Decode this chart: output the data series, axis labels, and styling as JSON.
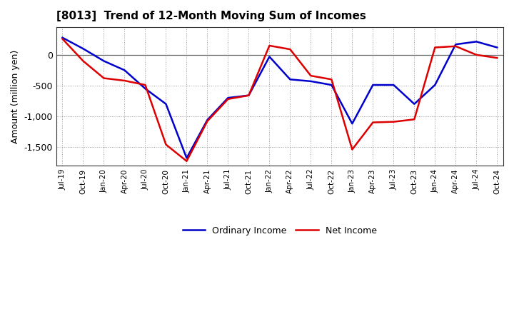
{
  "title": "[8013]  Trend of 12-Month Moving Sum of Incomes",
  "ylabel": "Amount (million yen)",
  "ylim": [
    -1800,
    450
  ],
  "yticks": [
    -1500,
    -1000,
    -500,
    0
  ],
  "background_color": "#ffffff",
  "plot_bg_color": "#ffffff",
  "grid_color": "#999999",
  "line_color_ordinary": "#0000cc",
  "line_color_net": "#dd0000",
  "line_width": 1.8,
  "legend_ordinary": "Ordinary Income",
  "legend_net": "Net Income",
  "x_labels": [
    "Jul-19",
    "Oct-19",
    "Jan-20",
    "Apr-20",
    "Jul-20",
    "Oct-20",
    "Jan-21",
    "Apr-21",
    "Jul-21",
    "Oct-21",
    "Jan-22",
    "Apr-22",
    "Jul-22",
    "Oct-22",
    "Jan-23",
    "Apr-23",
    "Jul-23",
    "Oct-23",
    "Jan-24",
    "Apr-24",
    "Jul-24",
    "Oct-24"
  ],
  "ordinary_income": [
    280,
    100,
    -100,
    -250,
    -550,
    -800,
    -1680,
    -1060,
    -700,
    -660,
    -30,
    -400,
    -430,
    -490,
    -1120,
    -490,
    -490,
    -800,
    -490,
    170,
    215,
    120
  ],
  "net_income": [
    260,
    -100,
    -380,
    -420,
    -490,
    -1460,
    -1730,
    -1080,
    -720,
    -660,
    150,
    90,
    -340,
    -400,
    -1540,
    -1100,
    -1090,
    -1050,
    120,
    140,
    0,
    -50
  ]
}
